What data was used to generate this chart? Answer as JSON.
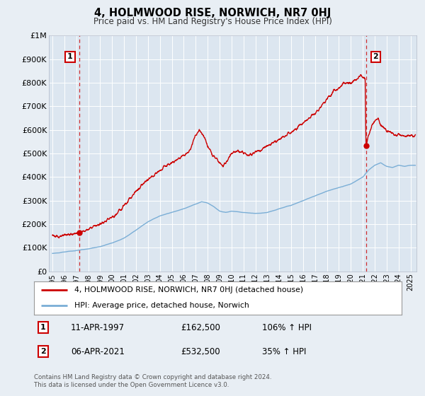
{
  "title": "4, HOLMWOOD RISE, NORWICH, NR7 0HJ",
  "subtitle": "Price paid vs. HM Land Registry's House Price Index (HPI)",
  "background_color": "#e8eef4",
  "plot_bg_color": "#dce6f0",
  "grid_color": "#ffffff",
  "red_line_color": "#cc0000",
  "blue_line_color": "#7aaed6",
  "sale1_date": "11-APR-1997",
  "sale1_price": 162500,
  "sale1_label": "106% ↑ HPI",
  "sale2_date": "06-APR-2021",
  "sale2_price": 532500,
  "sale2_label": "35% ↑ HPI",
  "sale1_year": 1997.28,
  "sale2_year": 2021.27,
  "ylabel_ticks": [
    "£0",
    "£100K",
    "£200K",
    "£300K",
    "£400K",
    "£500K",
    "£600K",
    "£700K",
    "£800K",
    "£900K",
    "£1M"
  ],
  "ytick_values": [
    0,
    100000,
    200000,
    300000,
    400000,
    500000,
    600000,
    700000,
    800000,
    900000,
    1000000
  ],
  "xmin": 1994.7,
  "xmax": 2025.5,
  "ymin": 0,
  "ymax": 1000000,
  "legend_label_red": "4, HOLMWOOD RISE, NORWICH, NR7 0HJ (detached house)",
  "legend_label_blue": "HPI: Average price, detached house, Norwich",
  "footer": "Contains HM Land Registry data © Crown copyright and database right 2024.\nThis data is licensed under the Open Government Licence v3.0."
}
